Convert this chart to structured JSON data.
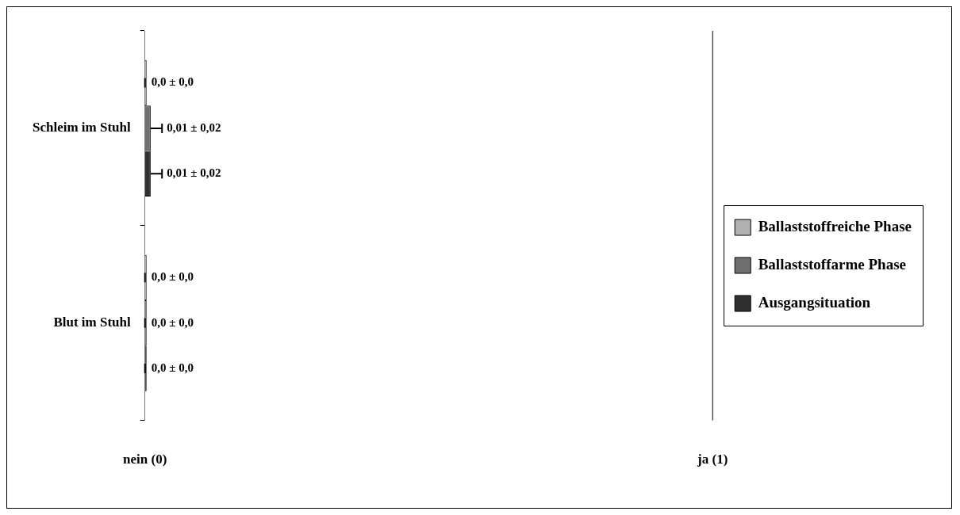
{
  "chart_data": {
    "type": "bar",
    "orientation": "horizontal",
    "categories": [
      "Schleim im Stuhl",
      "Blut im Stuhl"
    ],
    "series": [
      {
        "name": "Ballaststoffreiche Phase",
        "color": "#b0b0b0",
        "values": [
          0,
          0
        ],
        "errors": [
          0,
          0
        ],
        "value_labels": [
          "0,0 ± 0,0",
          "0,0 ± 0,0"
        ]
      },
      {
        "name": "Ballaststoffarme Phase",
        "color": "#707070",
        "values": [
          0.01,
          0
        ],
        "errors": [
          [
            0.01,
            0.03
          ],
          0
        ],
        "value_labels": [
          "0,01 ± 0,02",
          "0,0 ± 0,0"
        ]
      },
      {
        "name": "Ausgangsituation",
        "color": "#303030",
        "values": [
          0.01,
          0
        ],
        "errors": [
          [
            0.01,
            0.03
          ],
          0
        ],
        "value_labels": [
          "0,01 ± 0,02",
          "0,0 ± 0,0"
        ]
      }
    ],
    "xlim": [
      0,
      1
    ],
    "xticks": [
      {
        "value": 0,
        "label": "nein (0)"
      },
      {
        "value": 1,
        "label": "ja (1)"
      }
    ],
    "ref_lines": [
      {
        "axis": "x",
        "value": 1,
        "color": "#000000"
      }
    ],
    "legend": "right"
  }
}
